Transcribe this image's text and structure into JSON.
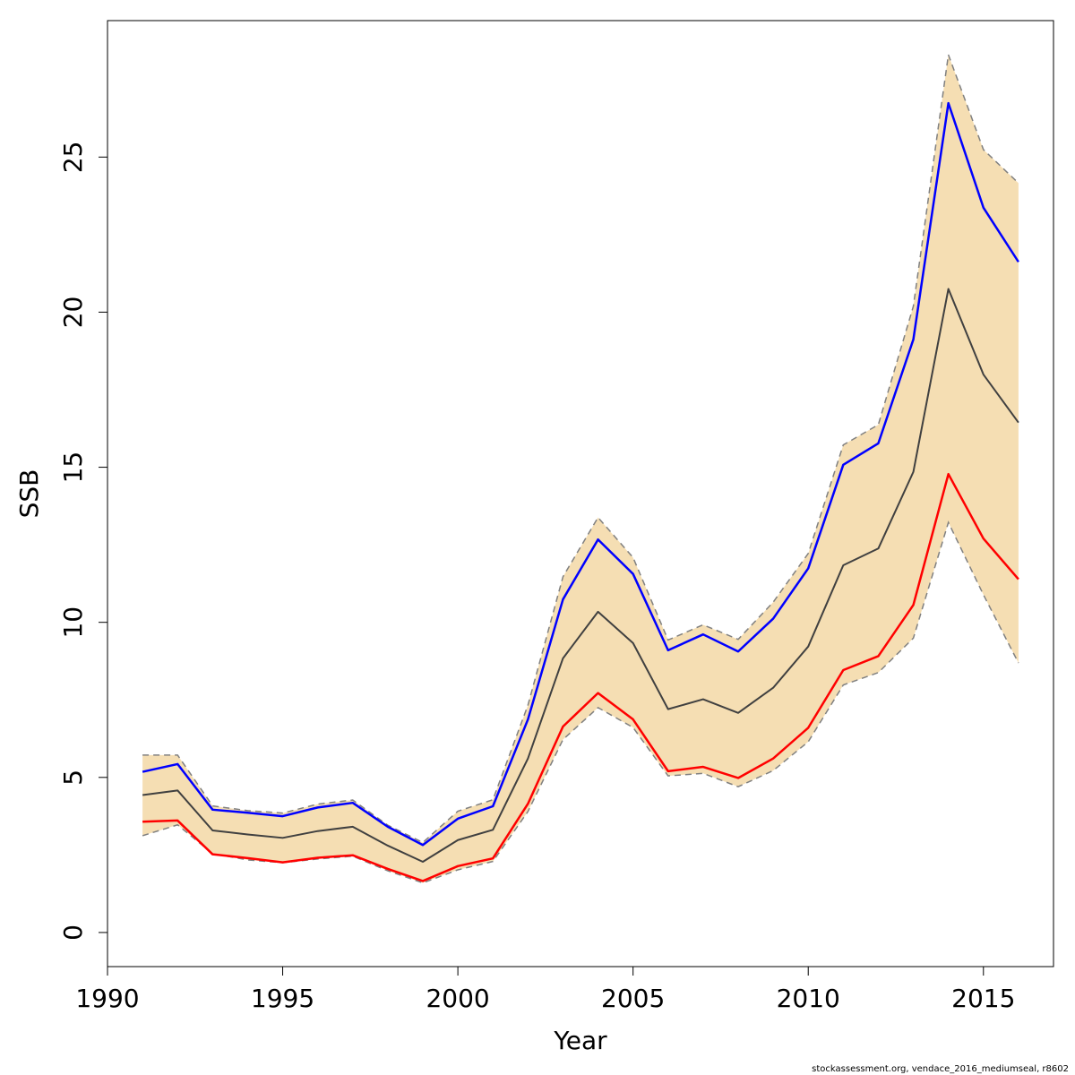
{
  "chart_data": {
    "type": "line",
    "xlabel": "Year",
    "ylabel": "SSB",
    "xlim": [
      1990,
      2017
    ],
    "ylim": [
      -1.1,
      29.4
    ],
    "x_ticks": [
      1990,
      1995,
      2000,
      2005,
      2010,
      2015
    ],
    "y_ticks": [
      0,
      5,
      10,
      15,
      20,
      25
    ],
    "x_tick_labels": [
      "1990",
      "1995",
      "2000",
      "2005",
      "2010",
      "2015"
    ],
    "y_tick_labels": [
      "0",
      "5",
      "10",
      "15",
      "20",
      "25"
    ],
    "x": [
      1991,
      1992,
      1993,
      1994,
      1995,
      1996,
      1997,
      1998,
      1999,
      2000,
      2001,
      2002,
      2003,
      2004,
      2005,
      2006,
      2007,
      2008,
      2009,
      2010,
      2011,
      2012,
      2013,
      2014,
      2015,
      2016
    ],
    "band": {
      "fill_color": "#f5deb3",
      "edge_color": "#808080",
      "upper": [
        5.72,
        5.72,
        4.08,
        3.93,
        3.85,
        4.14,
        4.27,
        3.46,
        2.9,
        3.91,
        4.28,
        7.33,
        11.47,
        13.38,
        12.09,
        9.43,
        9.92,
        9.45,
        10.65,
        12.22,
        15.72,
        16.37,
        20.19,
        28.3,
        25.24,
        24.16
      ],
      "lower": [
        3.12,
        3.47,
        2.54,
        2.34,
        2.25,
        2.37,
        2.46,
        1.99,
        1.6,
        2.02,
        2.29,
        3.9,
        6.22,
        7.25,
        6.61,
        5.05,
        5.13,
        4.7,
        5.22,
        6.15,
        7.98,
        8.38,
        9.49,
        13.22,
        10.89,
        8.69
      ]
    },
    "series": [
      {
        "color": "#0000ff",
        "values": [
          5.18,
          5.43,
          3.96,
          3.86,
          3.75,
          4.03,
          4.18,
          3.41,
          2.82,
          3.67,
          4.07,
          6.87,
          10.74,
          12.67,
          11.56,
          9.1,
          9.61,
          9.06,
          10.12,
          11.74,
          15.08,
          15.77,
          19.12,
          26.74,
          23.37,
          21.62
        ]
      },
      {
        "color": "#404040",
        "values": [
          4.43,
          4.58,
          3.29,
          3.16,
          3.05,
          3.27,
          3.41,
          2.8,
          2.28,
          2.98,
          3.31,
          5.61,
          8.84,
          10.34,
          9.33,
          7.2,
          7.52,
          7.08,
          7.89,
          9.22,
          11.84,
          12.38,
          14.85,
          20.75,
          17.99,
          16.44
        ]
      },
      {
        "color": "#ff0000",
        "values": [
          3.57,
          3.61,
          2.52,
          2.4,
          2.26,
          2.41,
          2.49,
          2.05,
          1.66,
          2.14,
          2.39,
          4.15,
          6.64,
          7.72,
          6.87,
          5.2,
          5.34,
          4.98,
          5.61,
          6.6,
          8.46,
          8.91,
          10.56,
          14.78,
          12.7,
          11.39
        ]
      }
    ]
  },
  "footer": {
    "credit": "stockassessment.org, vendace_2016_mediumseal, r8602"
  }
}
